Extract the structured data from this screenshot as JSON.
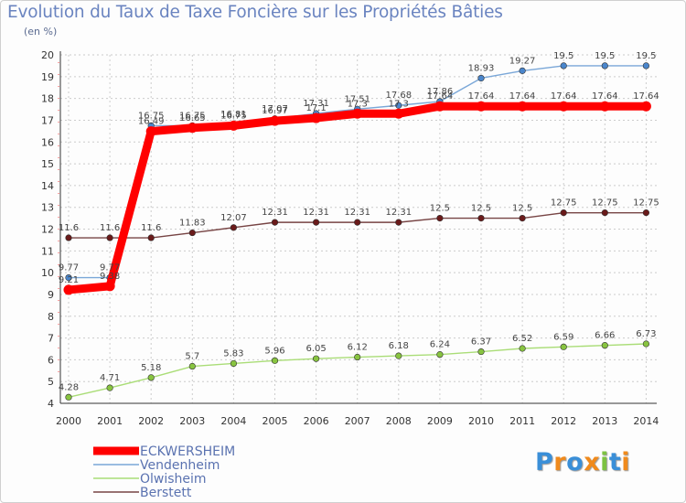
{
  "header": {
    "title": "Evolution du Taux de Taxe Foncière sur les Propriétés Bâties",
    "unit": "(en %)"
  },
  "logo": {
    "text": "Proxiti",
    "letters": [
      {
        "ch": "P",
        "color": "#3a8fd8"
      },
      {
        "ch": "r",
        "color": "#f08a1c"
      },
      {
        "ch": "o",
        "color": "#3a8fd8"
      },
      {
        "ch": "x",
        "color": "#f08a1c"
      },
      {
        "ch": "i",
        "color": "#7dc242"
      },
      {
        "ch": "t",
        "color": "#3a8fd8"
      },
      {
        "ch": "i",
        "color": "#f08a1c"
      }
    ]
  },
  "chart_data": {
    "type": "line",
    "title": "Evolution du Taux de Taxe Foncière sur les Propriétés Bâties",
    "ylabel": "(en %)",
    "xlabel": "",
    "ylim": [
      4,
      20
    ],
    "yticks": [
      4,
      5,
      6,
      7,
      8,
      9,
      10,
      11,
      12,
      13,
      14,
      15,
      16,
      17,
      18,
      19,
      20
    ],
    "categories": [
      "2000",
      "2001",
      "2002",
      "2003",
      "2004",
      "2005",
      "2006",
      "2007",
      "2008",
      "2009",
      "2010",
      "2011",
      "2012",
      "2013",
      "2014"
    ],
    "legend_position": "bottom-left",
    "series": [
      {
        "name": "ECKWERSHEIM",
        "color": "#ff0000",
        "line_color": "#ff0000",
        "point_color": "#ff0000",
        "emphasis": true,
        "values": [
          9.21,
          9.38,
          16.49,
          16.65,
          16.75,
          16.97,
          17.1,
          17.3,
          17.3,
          17.64,
          17.64,
          17.64,
          17.64,
          17.64,
          17.64
        ],
        "labels": [
          "9.21",
          "9.38",
          "16.49",
          "16.65",
          "16.75",
          "16.97",
          "17.1",
          "17.3",
          "17.3",
          "17.64",
          "17.64",
          "17.64",
          "17.64",
          "17.64",
          "17.64"
        ]
      },
      {
        "name": "Vendenheim",
        "color": "#7aa7d8",
        "line_color": "#7aa7d8",
        "point_color": "#4a86cc",
        "emphasis": false,
        "values": [
          9.77,
          9.77,
          16.75,
          16.75,
          16.81,
          17.07,
          17.31,
          17.51,
          17.68,
          17.86,
          18.93,
          19.27,
          19.5,
          19.5,
          19.5
        ],
        "labels": [
          "9.77",
          "9.77",
          "16.75",
          "16.75",
          "16.81",
          "17.07",
          "17.31",
          "17.51",
          "17.68",
          "17.86",
          "18.93",
          "19.27",
          "19.5",
          "19.5",
          "19.5"
        ]
      },
      {
        "name": "Olwisheim",
        "color": "#aadd77",
        "line_color": "#aadd77",
        "point_color": "#88c440",
        "emphasis": false,
        "values": [
          4.28,
          4.71,
          5.18,
          5.7,
          5.83,
          5.96,
          6.05,
          6.12,
          6.18,
          6.24,
          6.37,
          6.52,
          6.59,
          6.66,
          6.73
        ],
        "labels": [
          "4.28",
          "4.71",
          "5.18",
          "5.7",
          "5.83",
          "5.96",
          "6.05",
          "6.12",
          "6.18",
          "6.24",
          "6.37",
          "6.52",
          "6.59",
          "6.66",
          "6.73"
        ]
      },
      {
        "name": "Berstett",
        "color": "#774444",
        "line_color": "#774444",
        "point_color": "#6a1a1a",
        "emphasis": false,
        "values": [
          11.6,
          11.6,
          11.6,
          11.83,
          12.07,
          12.31,
          12.31,
          12.31,
          12.31,
          12.5,
          12.5,
          12.5,
          12.75,
          12.75,
          12.75
        ],
        "labels": [
          "11.6",
          "11.6",
          "11.6",
          "11.83",
          "12.07",
          "12.31",
          "12.31",
          "12.31",
          "12.31",
          "12.5",
          "12.5",
          "12.5",
          "12.75",
          "12.75",
          "12.75"
        ]
      }
    ]
  }
}
